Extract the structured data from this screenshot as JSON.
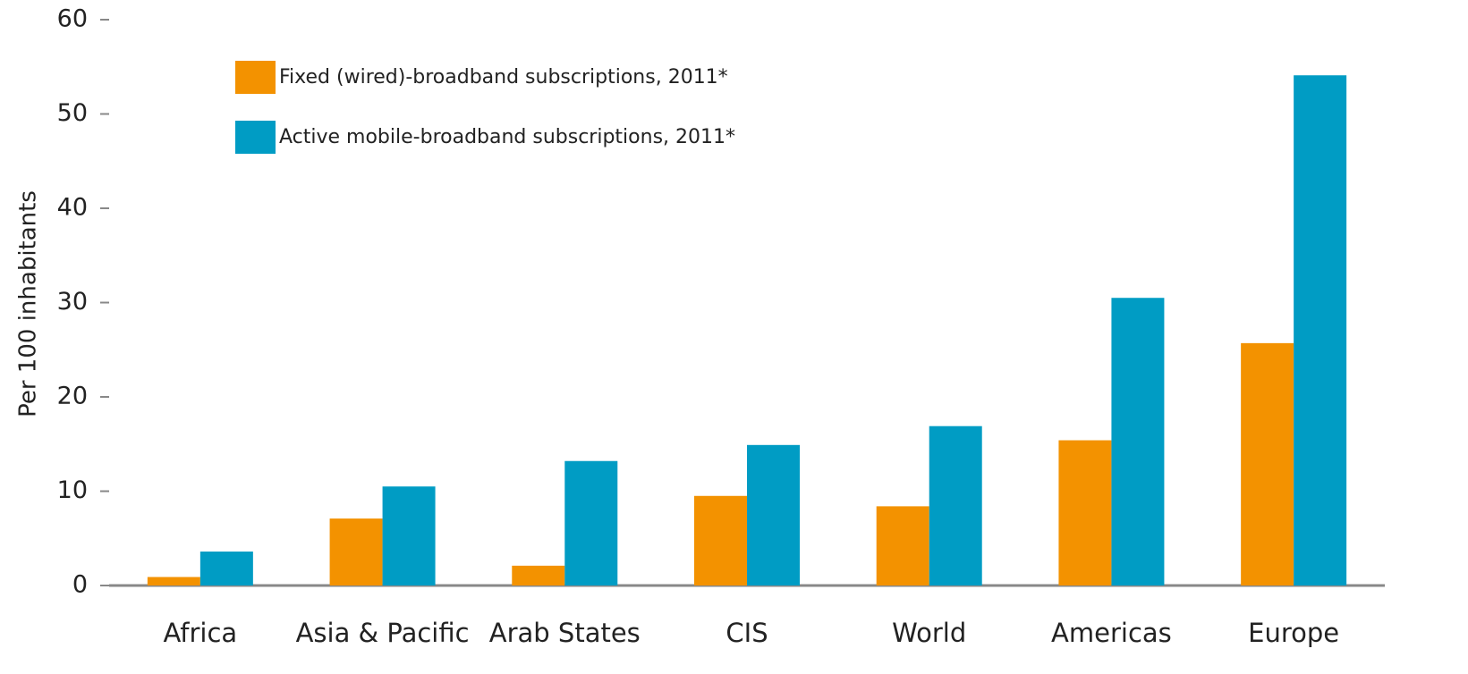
{
  "chart_data": {
    "type": "bar",
    "y_label": "Per 100 inhabitants",
    "categories": [
      "Africa",
      "Asia & Pacific",
      "Arab States",
      "CIS",
      "World",
      "Americas",
      "Europe"
    ],
    "series": [
      {
        "name": "Fixed (wired)-broadband subscriptions, 2011*",
        "color": "#f39200",
        "values": [
          0.9,
          7.1,
          2.1,
          9.5,
          8.4,
          15.4,
          25.7
        ]
      },
      {
        "name": "Active mobile-broadband subscriptions, 2011*",
        "color": "#009cc4",
        "values": [
          3.6,
          10.5,
          13.2,
          14.9,
          16.9,
          30.5,
          54.1
        ]
      }
    ],
    "ylim": [
      0,
      60
    ],
    "yticks": [
      0,
      10,
      20,
      30,
      40,
      50,
      60
    ]
  }
}
